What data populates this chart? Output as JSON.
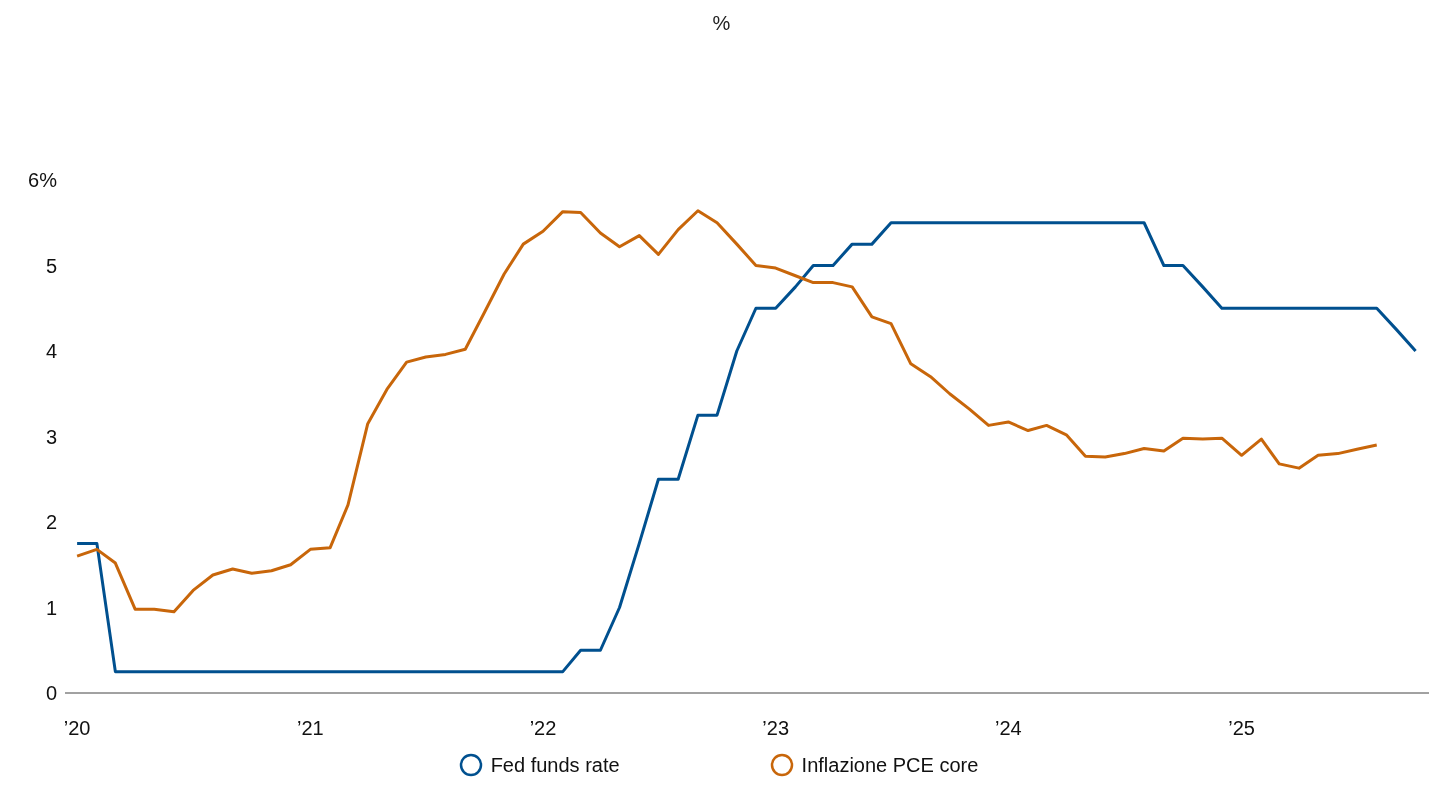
{
  "chart_data": {
    "type": "line",
    "title": "%",
    "ylim": [
      0,
      6
    ],
    "yticks": [
      0,
      1,
      2,
      3,
      4,
      5,
      {
        "value": 6,
        "label": "6%"
      }
    ],
    "xlim": [
      "2019-12-13",
      "2025-10-22"
    ],
    "xticks": [
      {
        "value": "2020-01-01",
        "label": "’20"
      },
      {
        "value": "2021-01-01",
        "label": "’21"
      },
      {
        "value": "2022-01-01",
        "label": "’22"
      },
      {
        "value": "2023-01-01",
        "label": "’23"
      },
      {
        "value": "2024-01-01",
        "label": "’24"
      },
      {
        "value": "2025-01-01",
        "label": "’25"
      }
    ],
    "legend": "bottom",
    "series": [
      {
        "name": "Fed funds rate",
        "color": "#00508f",
        "x": [
          "2020-01",
          "2020-02",
          "2020-03",
          "2022-02",
          "2022-03",
          "2022-04",
          "2022-05",
          "2022-06",
          "2022-07",
          "2022-08",
          "2022-09",
          "2022-10",
          "2022-11",
          "2022-12",
          "2023-01",
          "2023-02",
          "2023-03",
          "2023-04",
          "2023-05",
          "2023-06",
          "2023-07",
          "2024-08",
          "2024-09",
          "2024-10",
          "2024-11",
          "2024-12",
          "2025-08",
          "2025-09",
          "2025-10"
        ],
        "values": [
          1.75,
          1.75,
          0.25,
          0.25,
          0.5,
          0.5,
          1.0,
          1.75,
          2.5,
          2.5,
          3.25,
          3.25,
          4.0,
          4.5,
          4.5,
          4.75,
          5.0,
          5.0,
          5.25,
          5.25,
          5.5,
          5.5,
          5.0,
          5.0,
          4.75,
          4.5,
          4.5,
          4.25,
          4.0
        ]
      },
      {
        "name": "Inflazione PCE core",
        "color": "#c8660a",
        "x": [
          "2020-01",
          "2020-02",
          "2020-03",
          "2020-04",
          "2020-05",
          "2020-06",
          "2020-07",
          "2020-08",
          "2020-09",
          "2020-10",
          "2020-11",
          "2020-12",
          "2021-01",
          "2021-02",
          "2021-03",
          "2021-04",
          "2021-05",
          "2021-06",
          "2021-07",
          "2021-08",
          "2021-09",
          "2021-10",
          "2021-11",
          "2021-12",
          "2022-01",
          "2022-02",
          "2022-03",
          "2022-04",
          "2022-05",
          "2022-06",
          "2022-07",
          "2022-08",
          "2022-09",
          "2022-10",
          "2022-11",
          "2022-12",
          "2023-01",
          "2023-02",
          "2023-03",
          "2023-04",
          "2023-05",
          "2023-06",
          "2023-07",
          "2023-08",
          "2023-09",
          "2023-10",
          "2023-11",
          "2023-12",
          "2024-01",
          "2024-02",
          "2024-03",
          "2024-04",
          "2024-05",
          "2024-06",
          "2024-07",
          "2024-08",
          "2024-09",
          "2024-10",
          "2024-11",
          "2024-12",
          "2025-01",
          "2025-02",
          "2025-03",
          "2025-04",
          "2025-05",
          "2025-06",
          "2025-07",
          "2025-08"
        ],
        "values": [
          1.6,
          1.68,
          1.52,
          0.98,
          0.98,
          0.95,
          1.2,
          1.38,
          1.45,
          1.4,
          1.43,
          1.5,
          1.68,
          1.7,
          2.2,
          3.15,
          3.55,
          3.87,
          3.93,
          3.96,
          4.02,
          4.45,
          4.9,
          5.25,
          5.4,
          5.63,
          5.62,
          5.38,
          5.22,
          5.35,
          5.13,
          5.42,
          5.64,
          5.5,
          5.25,
          5.0,
          4.97,
          4.88,
          4.8,
          4.8,
          4.75,
          4.4,
          4.32,
          3.85,
          3.7,
          3.5,
          3.32,
          3.13,
          3.17,
          3.07,
          3.13,
          3.02,
          2.77,
          2.76,
          2.8,
          2.86,
          2.83,
          2.98,
          2.97,
          2.98,
          2.78,
          2.97,
          2.68,
          2.63,
          2.78,
          2.8,
          2.85,
          2.9
        ]
      }
    ]
  }
}
